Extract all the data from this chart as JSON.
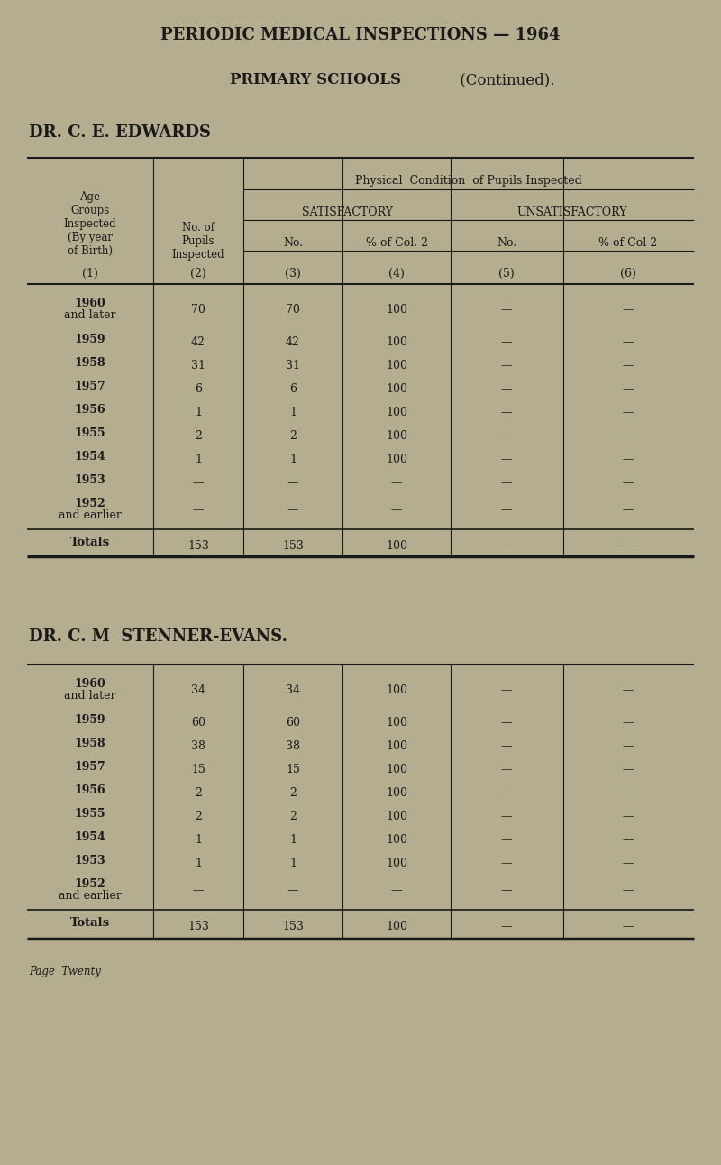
{
  "bg_color": "#b5ad8f",
  "text_color": "#1a1a1a",
  "page_title_bold": "PERIODIC MEDICAL INSPECTIONS — 1964",
  "subtitle_bold": "PRIMARY SCHOOLS",
  "subtitle_normal": " (Continued).",
  "doctor1_name": "DR. C. E. EDWARDS",
  "doctor2_name": "DR. C. M  STENNER-EVANS.",
  "col_headers_sat": "SATISFACTORY",
  "col_headers_unsat": "UNSATISFACTORY",
  "doctor1_rows": [
    [
      "1960",
      "and later",
      "70",
      "70",
      "100",
      "—",
      "—"
    ],
    [
      "1959",
      "",
      "42",
      "42",
      "100",
      "—",
      "—"
    ],
    [
      "1958",
      "",
      "31",
      "31",
      "100",
      "—",
      "—"
    ],
    [
      "1957",
      "",
      "6",
      "6",
      "100",
      "—",
      "—"
    ],
    [
      "1956",
      "",
      "1",
      "1",
      "100",
      "—",
      "—"
    ],
    [
      "1955",
      "",
      "2",
      "2",
      "100",
      "—",
      "—"
    ],
    [
      "1954",
      "",
      "1",
      "1",
      "100",
      "—",
      "—"
    ],
    [
      "1953",
      "",
      "—",
      "—",
      "—",
      "—",
      "—"
    ],
    [
      "1952",
      "and earlier",
      "—",
      "—",
      "—",
      "—",
      "—"
    ]
  ],
  "doctor1_total": [
    "Totals",
    "153",
    "153",
    "100",
    "—",
    "——"
  ],
  "doctor2_rows": [
    [
      "1960",
      "and later",
      "34",
      "34",
      "100",
      "—",
      "—"
    ],
    [
      "1959",
      "",
      "60",
      "60",
      "100",
      "—",
      "—"
    ],
    [
      "1958",
      "",
      "38",
      "38",
      "100",
      "—",
      "—"
    ],
    [
      "1957",
      "",
      "15",
      "15",
      "100",
      "—",
      "—"
    ],
    [
      "1956",
      "",
      "2",
      "2",
      "100",
      "—",
      "—"
    ],
    [
      "1955",
      "",
      "2",
      "2",
      "100",
      "—",
      "—"
    ],
    [
      "1954",
      "",
      "1",
      "1",
      "100",
      "—",
      "—"
    ],
    [
      "1953",
      "",
      "1",
      "1",
      "100",
      "—",
      "—"
    ],
    [
      "1952",
      "and earlier",
      "—",
      "—",
      "—",
      "—",
      "—"
    ]
  ],
  "doctor2_total": [
    "Totals",
    "153",
    "153",
    "100",
    "—",
    "—"
  ],
  "footer": "Page  Twenty"
}
